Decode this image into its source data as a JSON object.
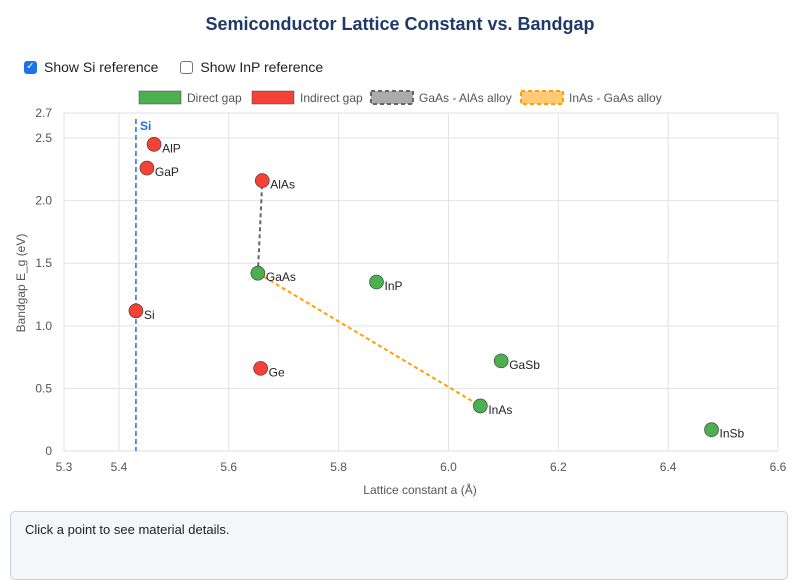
{
  "title": "Semiconductor Lattice Constant vs. Bandgap",
  "controls": {
    "show_si": {
      "label": "Show Si reference",
      "checked": true
    },
    "show_inp": {
      "label": "Show InP reference",
      "checked": false
    }
  },
  "info_text": "Click a point to see material details.",
  "colors": {
    "direct": "#4caf50",
    "indirect": "#f44336",
    "gaas_alas": "#666666",
    "inas_gaas": "#ff9f00",
    "si_ref": "#1a73e8"
  },
  "chart_data": {
    "type": "scatter",
    "xlabel": "Lattice constant a (Å)",
    "ylabel": "Bandgap E_g (eV)",
    "xlim": [
      5.3,
      6.6
    ],
    "ylim": [
      0,
      2.7
    ],
    "x_ticks": [
      "5.3",
      "5.4",
      "5.6",
      "5.8",
      "6.0",
      "6.2",
      "6.4",
      "6.6"
    ],
    "y_ticks": [
      "0",
      "0.5",
      "1.0",
      "1.5",
      "2.0",
      "2.5",
      "2.7"
    ],
    "grid": true,
    "legend": [
      {
        "label": "Direct gap",
        "style": "direct"
      },
      {
        "label": "Indirect gap",
        "style": "indirect"
      },
      {
        "label": "GaAs - AlAs alloy",
        "style": "gaas_alas"
      },
      {
        "label": "InAs - GaAs alloy",
        "style": "inas_gaas"
      }
    ],
    "reference_line": {
      "label": "Si",
      "x": 5.431
    },
    "points": [
      {
        "label": "AlP",
        "x": 5.464,
        "y": 2.45,
        "gap": "indirect"
      },
      {
        "label": "GaP",
        "x": 5.451,
        "y": 2.26,
        "gap": "indirect"
      },
      {
        "label": "AlAs",
        "x": 5.661,
        "y": 2.16,
        "gap": "indirect"
      },
      {
        "label": "Si",
        "x": 5.431,
        "y": 1.12,
        "gap": "indirect"
      },
      {
        "label": "Ge",
        "x": 5.658,
        "y": 0.66,
        "gap": "indirect"
      },
      {
        "label": "GaAs",
        "x": 5.653,
        "y": 1.42,
        "gap": "direct"
      },
      {
        "label": "InP",
        "x": 5.869,
        "y": 1.35,
        "gap": "direct"
      },
      {
        "label": "GaSb",
        "x": 6.096,
        "y": 0.72,
        "gap": "direct"
      },
      {
        "label": "InAs",
        "x": 6.058,
        "y": 0.36,
        "gap": "direct"
      },
      {
        "label": "InSb",
        "x": 6.479,
        "y": 0.17,
        "gap": "direct"
      }
    ],
    "alloy_lines": [
      {
        "name": "GaAs - AlAs alloy",
        "style": "gaas_alas",
        "from": [
          5.653,
          1.42
        ],
        "to": [
          5.661,
          2.16
        ]
      },
      {
        "name": "InAs - GaAs alloy",
        "style": "inas_gaas",
        "from": [
          5.653,
          1.42
        ],
        "to": [
          6.058,
          0.36
        ]
      }
    ]
  }
}
